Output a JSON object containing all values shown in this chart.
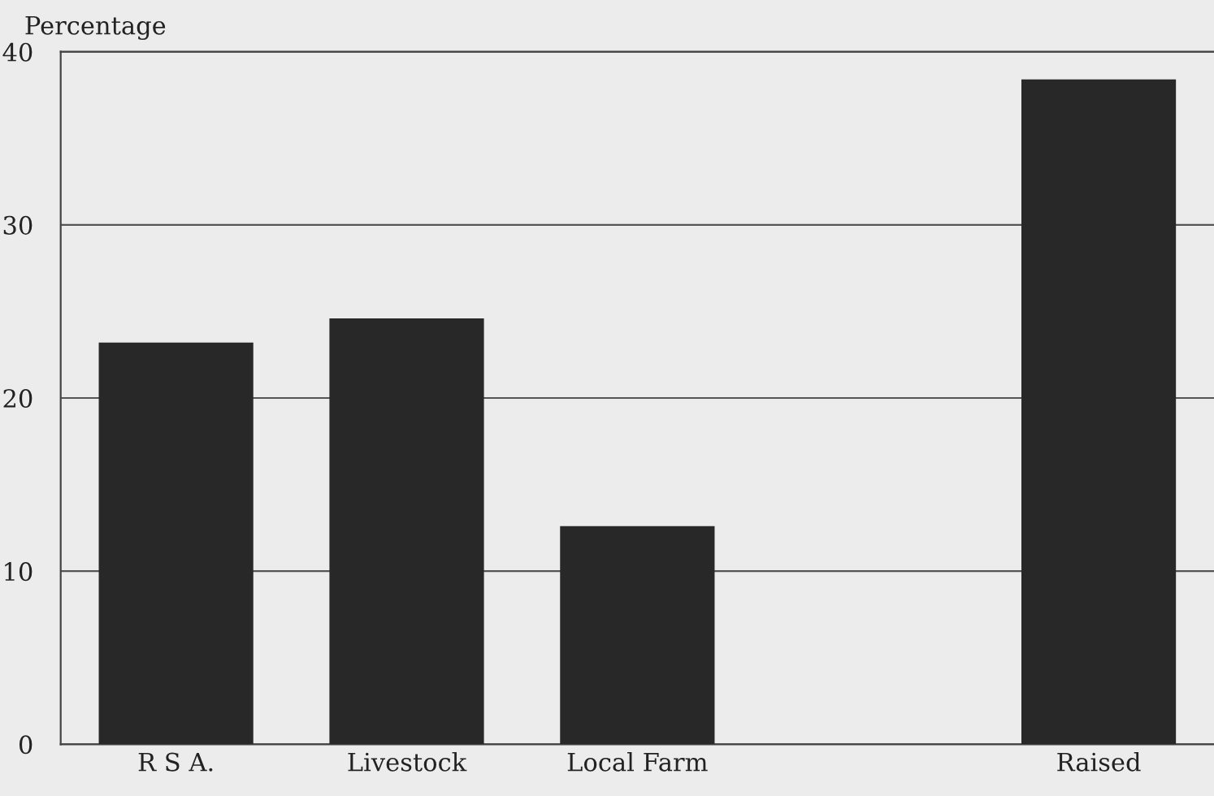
{
  "chart_data": {
    "type": "bar",
    "ylabel": "Percentage",
    "categories": [
      "R S A.",
      "Livestock",
      "Local Farm",
      null,
      "Raised"
    ],
    "values": [
      23.2,
      24.6,
      12.6,
      0,
      38.4
    ],
    "color": "#282828",
    "ylim": [
      0,
      40
    ],
    "yticks": [
      0,
      10,
      20,
      30,
      40
    ],
    "grid": "y"
  }
}
